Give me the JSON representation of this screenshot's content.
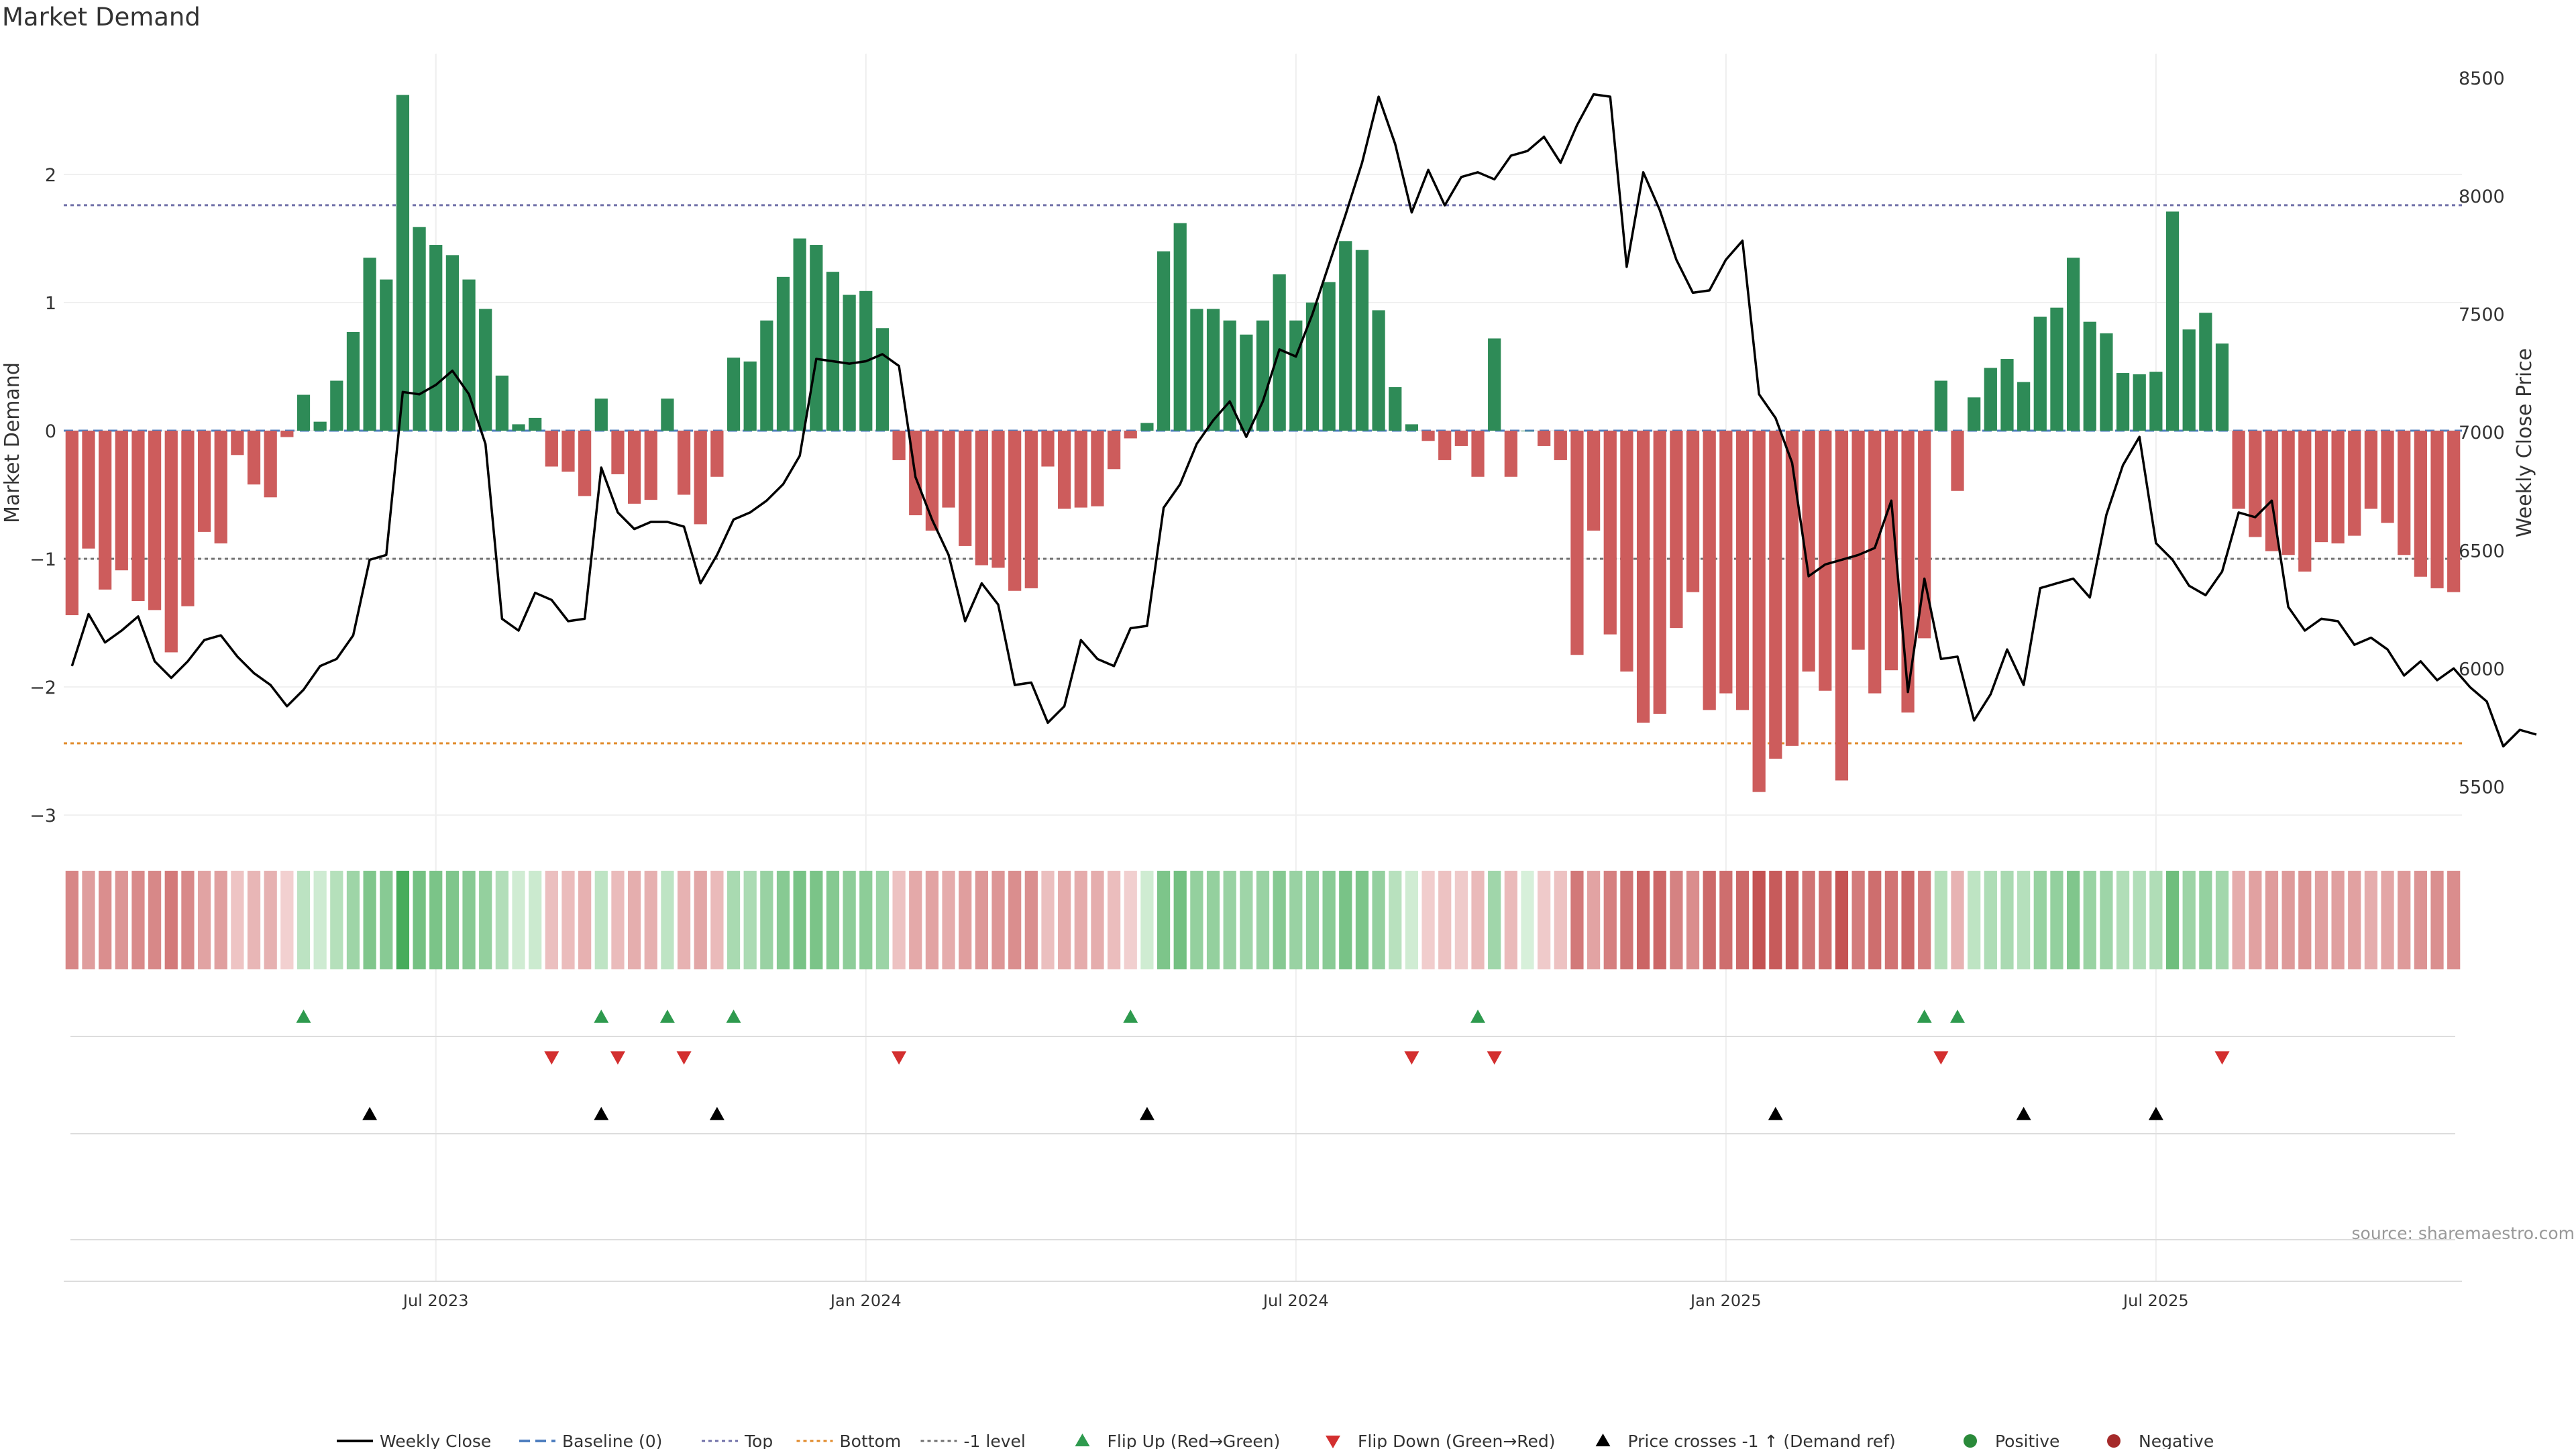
{
  "chart_data": {
    "type": "bar",
    "title": "Market Demand",
    "ylabel_left": "Market Demand",
    "ylabel_right": "Weekly Close Price",
    "ylim_left": [
      -3.3,
      2.9
    ],
    "ylim_right": [
      5400,
      8600
    ],
    "left_ticks": [
      2,
      1,
      0,
      -1,
      -2,
      -3
    ],
    "left_tick_labels": [
      "2",
      "1",
      "0",
      "−1",
      "−2",
      "−3"
    ],
    "right_ticks": [
      8500,
      8000,
      7500,
      7000,
      6500,
      6000,
      5500
    ],
    "x_ticks": [
      {
        "index": 22,
        "label": "Jul 2023"
      },
      {
        "index": 48,
        "label": "Jan 2024"
      },
      {
        "index": 74,
        "label": "Jul 2024"
      },
      {
        "index": 100,
        "label": "Jan 2025"
      },
      {
        "index": 126,
        "label": "Jul 2025"
      }
    ],
    "reference_lines": {
      "top": 1.76,
      "bottom": -2.44,
      "minus_one": -1.0,
      "baseline": 0
    },
    "series": [
      {
        "name": "Market Demand",
        "values": [
          -1.44,
          -0.92,
          -1.24,
          -1.09,
          -1.33,
          -1.4,
          -1.73,
          -1.37,
          -0.79,
          -0.88,
          -0.19,
          -0.42,
          -0.52,
          -0.05,
          0.28,
          0.07,
          0.39,
          0.77,
          1.35,
          1.18,
          2.62,
          1.59,
          1.45,
          1.37,
          1.18,
          0.95,
          0.43,
          0.05,
          0.1,
          -0.28,
          -0.32,
          -0.51,
          0.25,
          -0.34,
          -0.57,
          -0.54,
          0.25,
          -0.5,
          -0.73,
          -0.36,
          0.57,
          0.54,
          0.86,
          1.2,
          1.5,
          1.45,
          1.24,
          1.06,
          1.09,
          0.8,
          -0.23,
          -0.66,
          -0.78,
          -0.6,
          -0.9,
          -1.05,
          -1.07,
          -1.25,
          -1.23,
          -0.28,
          -0.61,
          -0.6,
          -0.59,
          -0.3,
          -0.06,
          0.06,
          1.4,
          1.62,
          0.95,
          0.95,
          0.86,
          0.75,
          0.86,
          1.22,
          0.86,
          1.0,
          1.16,
          1.48,
          1.41,
          0.94,
          0.34,
          0.05,
          -0.08,
          -0.23,
          -0.12,
          -0.36,
          0.72,
          -0.36,
          0.0,
          -0.12,
          -0.23,
          -1.75,
          -0.78,
          -1.59,
          -1.88,
          -2.28,
          -2.21,
          -1.54,
          -1.26,
          -2.18,
          -2.05,
          -2.18,
          -2.82,
          -2.56,
          -2.46,
          -1.88,
          -2.03,
          -2.73,
          -1.71,
          -2.05,
          -1.87,
          -2.2,
          -1.62,
          0.39,
          -0.47,
          0.26,
          0.49,
          0.56,
          0.38,
          0.89,
          0.96,
          1.35,
          0.85,
          0.76,
          0.45,
          0.44,
          0.46,
          1.71,
          0.79,
          0.92,
          0.68,
          -0.61,
          -0.83,
          -0.94,
          -0.97,
          -1.1,
          -0.87,
          -0.88,
          -0.82,
          -0.61,
          -0.72,
          -0.97,
          -1.14,
          -1.23,
          -1.26
        ]
      },
      {
        "name": "Weekly Close",
        "values": [
          6010,
          6230,
          6110,
          6160,
          6220,
          6030,
          5960,
          6030,
          6120,
          6140,
          6050,
          5980,
          5930,
          5840,
          5910,
          6010,
          6040,
          6140,
          6460,
          6480,
          7170,
          7160,
          7200,
          7260,
          7160,
          6950,
          6210,
          6160,
          6320,
          6290,
          6200,
          6210,
          6850,
          6660,
          6590,
          6620,
          6620,
          6600,
          6360,
          6480,
          6630,
          6660,
          6710,
          6780,
          6900,
          7310,
          7300,
          7290,
          7300,
          7330,
          7280,
          6810,
          6630,
          6480,
          6200,
          6360,
          6270,
          5930,
          5940,
          5770,
          5840,
          6120,
          6040,
          6010,
          6170,
          6180,
          6680,
          6780,
          6950,
          7050,
          7130,
          6980,
          7130,
          7350,
          7320,
          7500,
          7710,
          7920,
          8140,
          8420,
          8220,
          7930,
          8110,
          7960,
          8080,
          8100,
          8070,
          8170,
          8190,
          8250,
          8140,
          8300,
          8430,
          8420,
          7700,
          8100,
          7940,
          7730,
          7590,
          7600,
          7730,
          7810,
          7160,
          7060,
          6870,
          6390,
          6440,
          6460,
          6480,
          6510,
          6710,
          5900,
          6380,
          6040,
          6050,
          5780,
          5890,
          6080,
          5930,
          6340,
          6360,
          6380,
          6300,
          6650,
          6860,
          6980,
          6530,
          6460,
          6350,
          6310,
          6410,
          6660,
          6640,
          6710,
          6260,
          6160,
          6210,
          6200,
          6100,
          6130,
          6080,
          5970,
          6030,
          5950,
          6000,
          5920,
          5860,
          5670,
          5740,
          5720
        ]
      }
    ],
    "events": {
      "flip_up": [
        14,
        32,
        36,
        40,
        64,
        85,
        112,
        114
      ],
      "flip_down": [
        29,
        33,
        37,
        50,
        81,
        86,
        113,
        130
      ],
      "price_cross": [
        18,
        32,
        39,
        65,
        103,
        118,
        126
      ]
    },
    "legend": {
      "position": "bottom-center",
      "items": [
        {
          "label": "Weekly Close",
          "kind": "line",
          "color": "#000000"
        },
        {
          "label": "Baseline (0)",
          "kind": "dash",
          "color": "#4f7fbf"
        },
        {
          "label": "Top",
          "kind": "dot",
          "color": "#7070a8"
        },
        {
          "label": "Bottom",
          "kind": "dot",
          "color": "#e08a2a"
        },
        {
          "label": "-1 level",
          "kind": "dot",
          "color": "#707070"
        },
        {
          "label": "Flip Up (Red→Green)",
          "kind": "tri-up",
          "color": "#2e9a4e"
        },
        {
          "label": "Flip Down (Green→Red)",
          "kind": "tri-down",
          "color": "#d32f2f"
        },
        {
          "label": "Price crosses -1 ↑ (Demand ref)",
          "kind": "tri-up",
          "color": "#000000"
        },
        {
          "label": "Positive",
          "kind": "circle",
          "color": "#2a8a3a"
        },
        {
          "label": "Negative",
          "kind": "circle",
          "color": "#a52a2a"
        }
      ]
    },
    "source": "source: sharemaestro.com",
    "colors": {
      "positive": "#2e8b57",
      "negative": "#cd5c5c"
    }
  }
}
